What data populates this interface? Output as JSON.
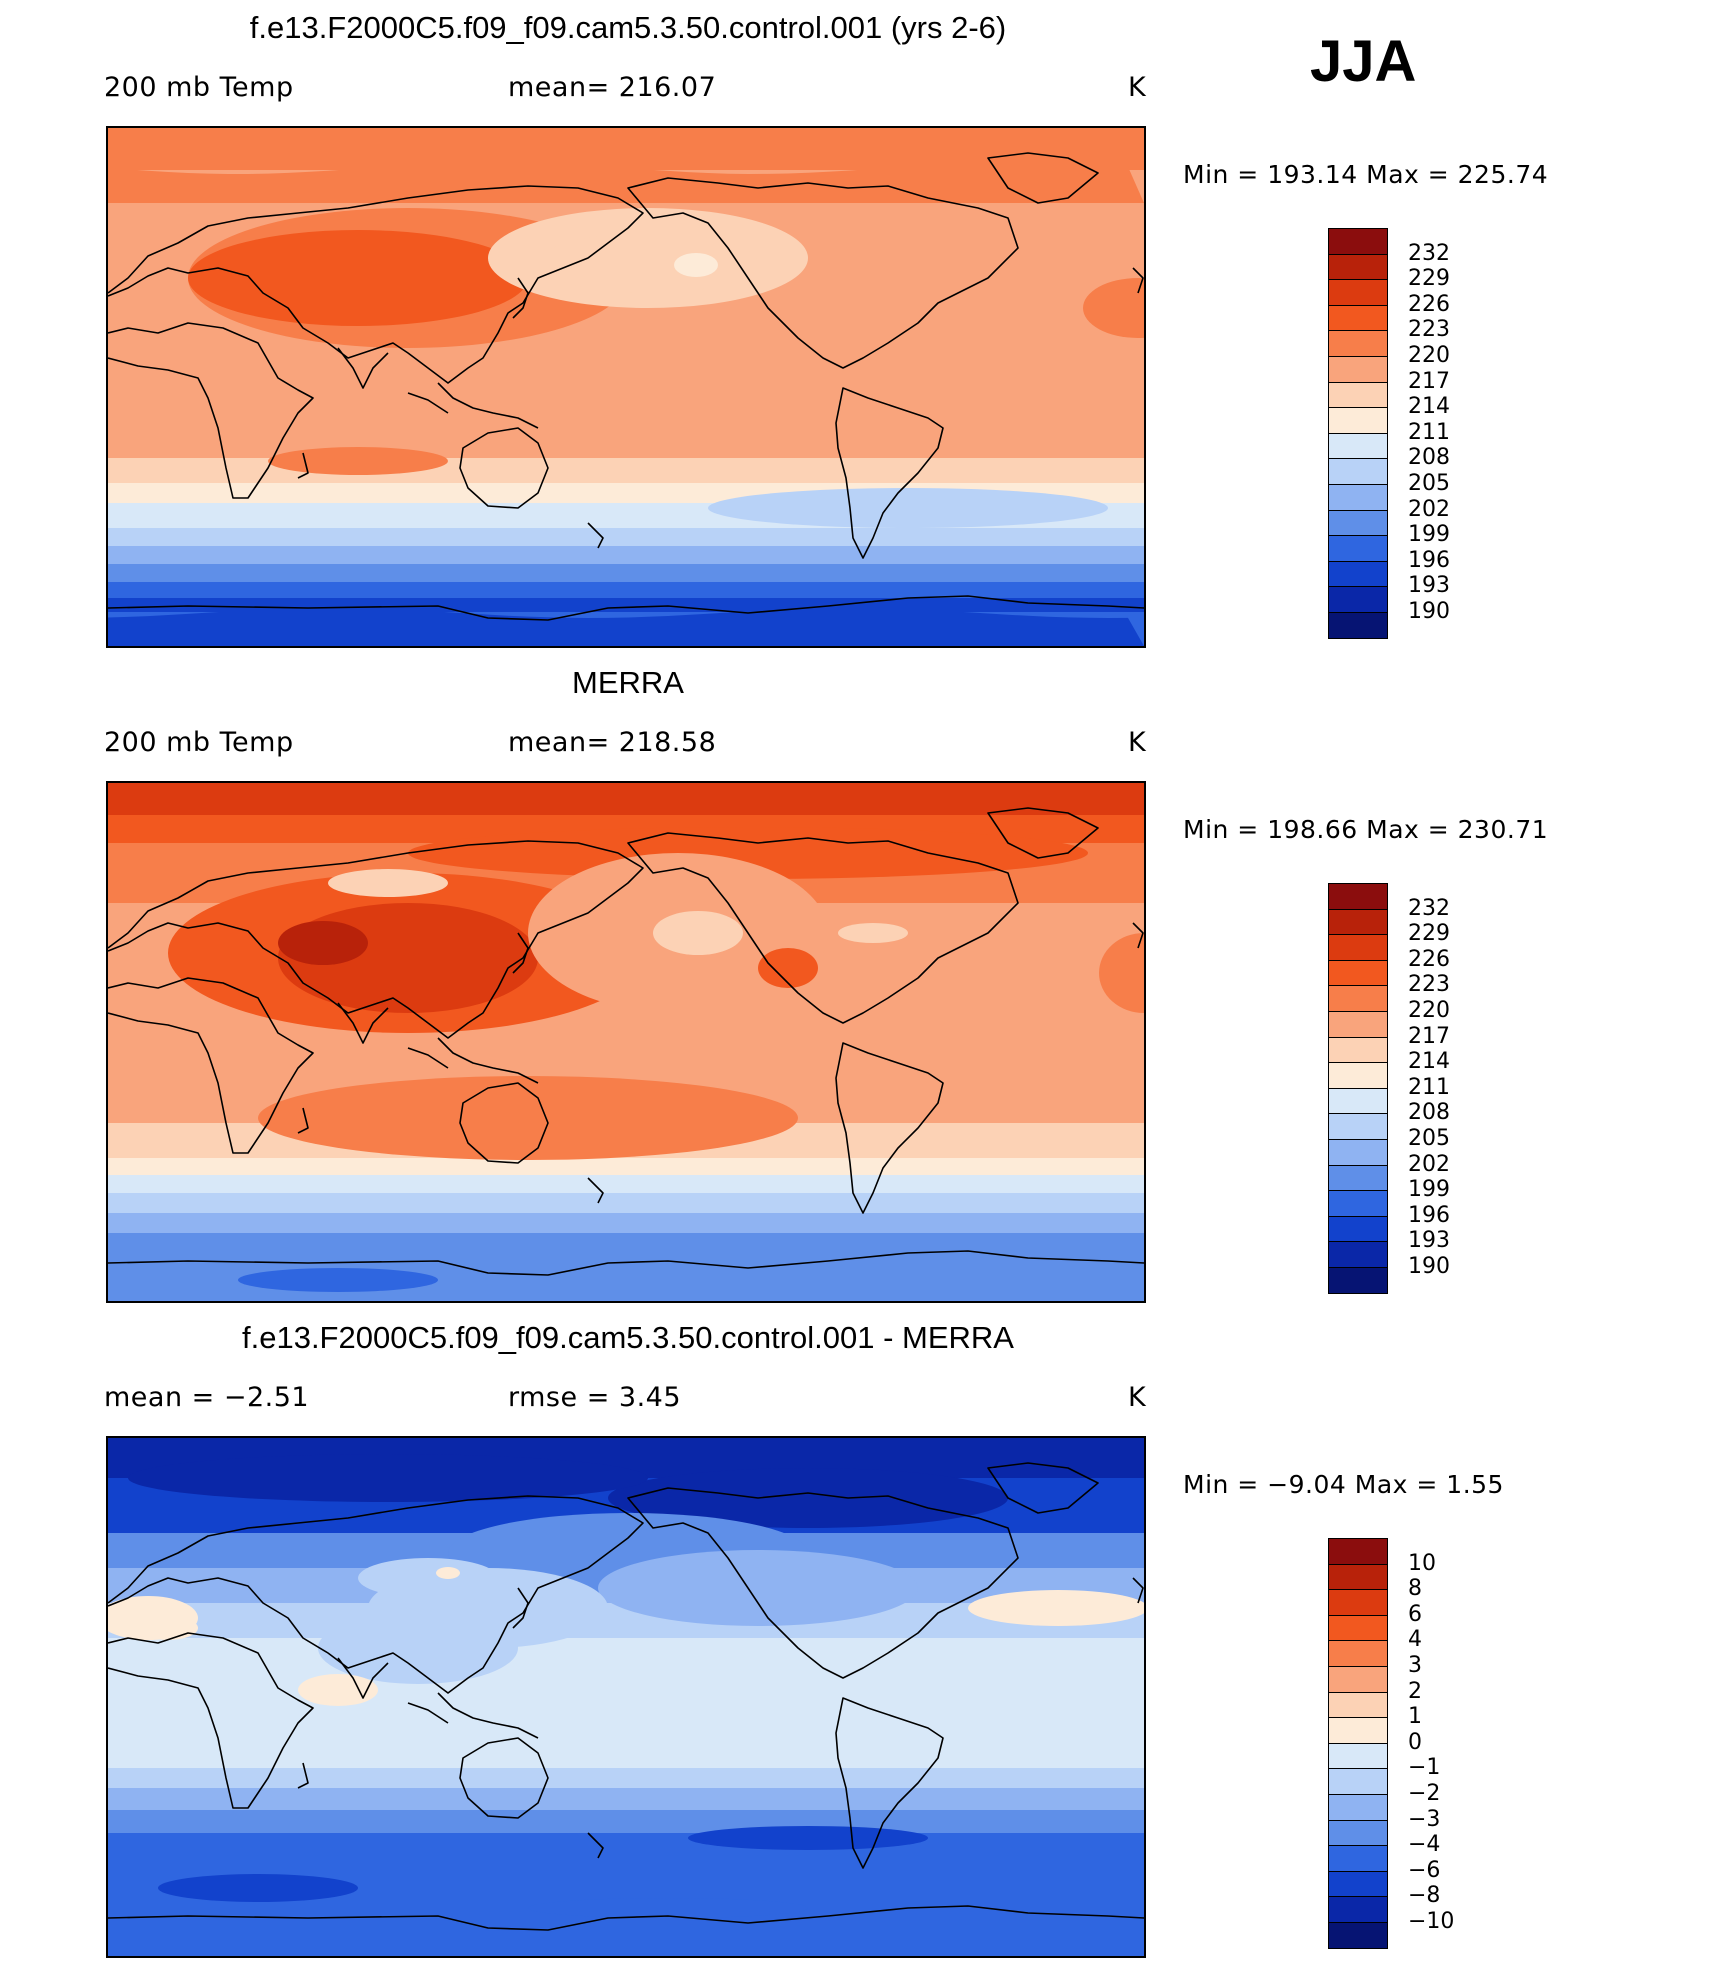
{
  "season": "JJA",
  "panels": [
    {
      "title": "f.e13.F2000C5.f09_f09.cam5.3.50.control.001 (yrs 2-6)",
      "left_label": "200 mb Temp",
      "mid_label": "mean=  216.07",
      "units": "K",
      "min_max": "Min  =  193.14  Max  =  225.74",
      "colorbar": {
        "labels": [
          "232",
          "229",
          "226",
          "223",
          "220",
          "217",
          "214",
          "211",
          "208",
          "205",
          "202",
          "199",
          "196",
          "193",
          "190"
        ],
        "colors": [
          "#8b0d0d",
          "#b8220a",
          "#dc3b10",
          "#f2581f",
          "#f77e4a",
          "#f9a47c",
          "#fcd2b5",
          "#fdebd8",
          "#d8e8f8",
          "#b8d2f7",
          "#8fb3f2",
          "#5f8fe8",
          "#2f66e0",
          "#1242cc",
          "#0a27a8",
          "#061473"
        ]
      },
      "field_palette": "temp",
      "field_variant": "model"
    },
    {
      "title": "MERRA",
      "left_label": "200 mb Temp",
      "mid_label": "mean=  218.58",
      "units": "K",
      "min_max": "Min  =  198.66  Max  =  230.71",
      "colorbar": {
        "labels": [
          "232",
          "229",
          "226",
          "223",
          "220",
          "217",
          "214",
          "211",
          "208",
          "205",
          "202",
          "199",
          "196",
          "193",
          "190"
        ],
        "colors": [
          "#8b0d0d",
          "#b8220a",
          "#dc3b10",
          "#f2581f",
          "#f77e4a",
          "#f9a47c",
          "#fcd2b5",
          "#fdebd8",
          "#d8e8f8",
          "#b8d2f7",
          "#8fb3f2",
          "#5f8fe8",
          "#2f66e0",
          "#1242cc",
          "#0a27a8",
          "#061473"
        ]
      },
      "field_palette": "temp",
      "field_variant": "obs"
    },
    {
      "title": "f.e13.F2000C5.f09_f09.cam5.3.50.control.001 - MERRA",
      "left_label": "mean  =    −2.51",
      "mid_label": "rmse  =     3.45",
      "units": "K",
      "min_max": "Min  =    −9.04  Max  =      1.55",
      "colorbar": {
        "labels": [
          "10",
          "8",
          "6",
          "4",
          "3",
          "2",
          "1",
          "0",
          "−1",
          "−2",
          "−3",
          "−4",
          "−6",
          "−8",
          "−10"
        ],
        "colors": [
          "#8b0d0d",
          "#b8220a",
          "#dc3b10",
          "#f2581f",
          "#f77e4a",
          "#f9a47c",
          "#fcd2b5",
          "#fdebd8",
          "#d8e8f8",
          "#b8d2f7",
          "#8fb3f2",
          "#5f8fe8",
          "#2f66e0",
          "#1242cc",
          "#0a27a8",
          "#061473"
        ]
      },
      "field_palette": "diff",
      "field_variant": "diff"
    }
  ]
}
